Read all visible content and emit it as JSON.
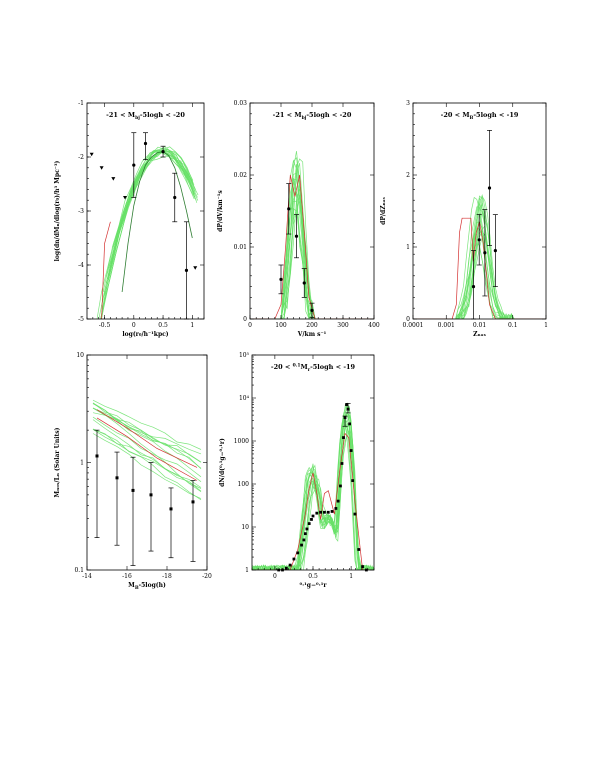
{
  "chart_data": [
    {
      "id": "size",
      "type": "line",
      "title": "−21 < Mₘₙ−5logh < −20",
      "title_text": "-21 < M",
      "title_sub": "bj",
      "title_rest": "-5logh < -20",
      "xlabel": "log(r₀/h⁻¹kpc)",
      "ylabel": "log(dn/dMₙ/dlog(r₀)/h³ Mpc⁻³)",
      "xlim": [
        -0.8,
        1.2
      ],
      "ylim": [
        -5,
        -1
      ],
      "log_y": false,
      "xticks": [
        "-0.5",
        "0",
        "0.5",
        "1"
      ],
      "yticks": [
        "-5",
        "-4",
        "-3",
        "-2",
        "-1"
      ],
      "points": [
        {
          "x": 0.0,
          "y": -2.15,
          "err": [
            0.6,
            0.6
          ]
        },
        {
          "x": 0.2,
          "y": -1.75,
          "err": [
            0.3,
            0.2
          ]
        },
        {
          "x": 0.5,
          "y": -1.9,
          "err": [
            0.1,
            0.1
          ]
        },
        {
          "x": 0.7,
          "y": -2.75,
          "err": [
            0.45,
            0.45
          ]
        },
        {
          "x": 0.9,
          "y": -4.1,
          "err": [
            0.9,
            0.9
          ]
        }
      ],
      "upper_limits": [
        {
          "x": -0.72,
          "y": -1.95
        },
        {
          "x": -0.55,
          "y": -2.2
        },
        {
          "x": -0.35,
          "y": -2.4
        },
        {
          "x": -0.15,
          "y": -2.75
        },
        {
          "x": 1.05,
          "y": -4.05
        }
      ],
      "model_curve": [
        [
          -0.2,
          -4.5
        ],
        [
          -0.1,
          -3.6
        ],
        [
          0.0,
          -2.9
        ],
        [
          0.1,
          -2.45
        ],
        [
          0.2,
          -2.15
        ],
        [
          0.3,
          -2.0
        ],
        [
          0.4,
          -1.92
        ],
        [
          0.5,
          -1.9
        ],
        [
          0.6,
          -1.98
        ],
        [
          0.7,
          -2.2
        ],
        [
          0.8,
          -2.55
        ],
        [
          0.9,
          -3.0
        ],
        [
          1.0,
          -3.5
        ]
      ]
    },
    {
      "id": "velocity",
      "type": "line",
      "title_text": "-21 < M",
      "title_sub": "bj",
      "title_rest": "-5logh < -20",
      "xlabel": "V/km s⁻¹",
      "ylabel": "dP/dV/km⁻¹s",
      "xlim": [
        0,
        400
      ],
      "ylim": [
        0,
        0.03
      ],
      "xticks": [
        "0",
        "100",
        "200",
        "300",
        "400"
      ],
      "yticks": [
        "0",
        "0.01",
        "0.02",
        "0.03"
      ],
      "points": [
        {
          "x": 100,
          "y": 0.0055,
          "err": [
            0.002,
            0.002
          ]
        },
        {
          "x": 125,
          "y": 0.0153,
          "err": [
            0.0035,
            0.0035
          ]
        },
        {
          "x": 150,
          "y": 0.0115,
          "err": [
            0.003,
            0.003
          ]
        },
        {
          "x": 175,
          "y": 0.005,
          "err": [
            0.002,
            0.002
          ]
        },
        {
          "x": 200,
          "y": 0.0012,
          "err": [
            0.001,
            0.001
          ]
        }
      ],
      "model_curve": [
        [
          0,
          0
        ],
        [
          80,
          0
        ],
        [
          100,
          0.002
        ],
        [
          115,
          0.01
        ],
        [
          130,
          0.02
        ],
        [
          145,
          0.017
        ],
        [
          160,
          0.02
        ],
        [
          175,
          0.012
        ],
        [
          190,
          0.003
        ],
        [
          210,
          0
        ],
        [
          400,
          0
        ]
      ]
    },
    {
      "id": "metallicity",
      "type": "line",
      "title_text": "-20 < M",
      "title_sub": "B",
      "title_rest": "-5logh < -19",
      "xlabel": "Zₙₐₛ",
      "ylabel": "dP/dZₙₐₛ",
      "log_x": true,
      "xlim": [
        0.0001,
        1
      ],
      "ylim": [
        0,
        3
      ],
      "xticks": [
        "0.0001",
        "0.001",
        "0.01",
        "0.1",
        "1"
      ],
      "yticks": [
        "0",
        "1",
        "2",
        "3"
      ],
      "points": [
        {
          "x": 0.0066,
          "y": 0.45,
          "err": [
            0.45,
            0.5
          ]
        },
        {
          "x": 0.0098,
          "y": 1.1,
          "err": [
            0.35,
            0.35
          ]
        },
        {
          "x": 0.0145,
          "y": 0.92,
          "err": [
            0.6,
            0.6
          ]
        },
        {
          "x": 0.02,
          "y": 1.82,
          "err": [
            0.8,
            0.8
          ]
        },
        {
          "x": 0.03,
          "y": 0.95,
          "err": [
            0.5,
            0.5
          ]
        }
      ],
      "red_curve": [
        [
          0.0001,
          0
        ],
        [
          0.0015,
          0
        ],
        [
          0.002,
          0.2
        ],
        [
          0.0025,
          1.2
        ],
        [
          0.003,
          1.4
        ],
        [
          0.0055,
          1.4
        ],
        [
          0.0065,
          0.8
        ],
        [
          0.008,
          1.2
        ],
        [
          0.01,
          1.35
        ],
        [
          0.013,
          1.05
        ],
        [
          0.02,
          0.2
        ],
        [
          0.03,
          0
        ],
        [
          1,
          0
        ]
      ]
    },
    {
      "id": "ml_ratio",
      "type": "line",
      "xlabel": "Mₙ−−5log(h)",
      "xlabel_text": "M",
      "xlabel_sub": "B",
      "xlabel_rest": "-5log(h)",
      "ylabel": "Mₙₒₛ/Lₙ (Solar Units)",
      "log_y": true,
      "xlim": [
        -14,
        -20
      ],
      "ylim": [
        0.1,
        10
      ],
      "xticks": [
        "-14",
        "-16",
        "-18",
        "-20"
      ],
      "yticks": [
        "0.1",
        "1",
        "10"
      ],
      "points": [
        {
          "x": -14.5,
          "y": 1.15,
          "lo": 0.2,
          "hi": 2.0
        },
        {
          "x": -15.5,
          "y": 0.72,
          "lo": 0.17,
          "hi": 1.25
        },
        {
          "x": -16.3,
          "y": 0.55,
          "lo": 0.11,
          "hi": 1.12
        },
        {
          "x": -17.2,
          "y": 0.5,
          "lo": 0.15,
          "hi": 1.0
        },
        {
          "x": -18.2,
          "y": 0.37,
          "lo": 0.13,
          "hi": 0.58
        },
        {
          "x": -19.3,
          "y": 0.43,
          "lo": 0.12,
          "hi": 0.68
        }
      ],
      "red_curves": [
        [
          [
            -14.5,
            2.6
          ],
          [
            -16,
            1.75
          ],
          [
            -17.5,
            1.1
          ],
          [
            -19.5,
            0.68
          ]
        ],
        [
          [
            -14.5,
            3.1
          ],
          [
            -16,
            2.1
          ],
          [
            -17.5,
            1.35
          ],
          [
            -19.5,
            0.9
          ]
        ]
      ]
    },
    {
      "id": "colour",
      "type": "line",
      "title_text": "-20 < ",
      "title_sup": "0.1",
      "title_mid": "M",
      "title_sub": "r",
      "title_rest": "-5logh < -19",
      "xlabel": "⁰·¹g−⁰·¹r",
      "ylabel": "dN/d(⁰·¹g−⁰·¹r)",
      "log_y": true,
      "xlim": [
        -0.3,
        1.3
      ],
      "ylim": [
        1,
        100000
      ],
      "xticks": [
        "0",
        "0.5",
        "1"
      ],
      "yticks": [
        "1",
        "10",
        "100",
        "1000",
        "10⁴",
        "10⁵"
      ],
      "points_x": [
        0.05,
        0.1,
        0.15,
        0.2,
        0.25,
        0.3,
        0.35,
        0.38,
        0.4,
        0.42,
        0.45,
        0.48,
        0.5,
        0.55,
        0.6,
        0.65,
        0.7,
        0.75,
        0.8,
        0.83,
        0.86,
        0.88,
        0.9,
        0.92,
        0.94,
        0.96,
        0.98,
        1.0,
        1.02,
        1.05,
        1.1,
        1.15,
        1.2
      ],
      "points_y": [
        1,
        1,
        1.1,
        1.3,
        1.8,
        2.5,
        3.8,
        5,
        7,
        9,
        12,
        15,
        18,
        21,
        22,
        22,
        22,
        23,
        27,
        40,
        90,
        300,
        1200,
        3500,
        7000,
        5500,
        2500,
        600,
        120,
        20,
        3,
        1.2,
        1
      ],
      "error_points": [
        {
          "x": 0.96,
          "y": 6000,
          "lo": 4500,
          "hi": 7500
        },
        {
          "x": 0.92,
          "y": 3000,
          "lo": 2200,
          "hi": 3800
        }
      ],
      "red_curve": [
        [
          -0.3,
          1
        ],
        [
          0.2,
          1
        ],
        [
          0.3,
          3
        ],
        [
          0.4,
          20
        ],
        [
          0.45,
          80
        ],
        [
          0.5,
          180
        ],
        [
          0.55,
          60
        ],
        [
          0.6,
          15
        ],
        [
          0.65,
          60
        ],
        [
          0.7,
          70
        ],
        [
          0.78,
          20
        ],
        [
          0.85,
          200
        ],
        [
          0.92,
          1500
        ],
        [
          0.97,
          1200
        ],
        [
          1.05,
          40
        ],
        [
          1.15,
          1
        ],
        [
          1.3,
          1
        ]
      ]
    }
  ]
}
